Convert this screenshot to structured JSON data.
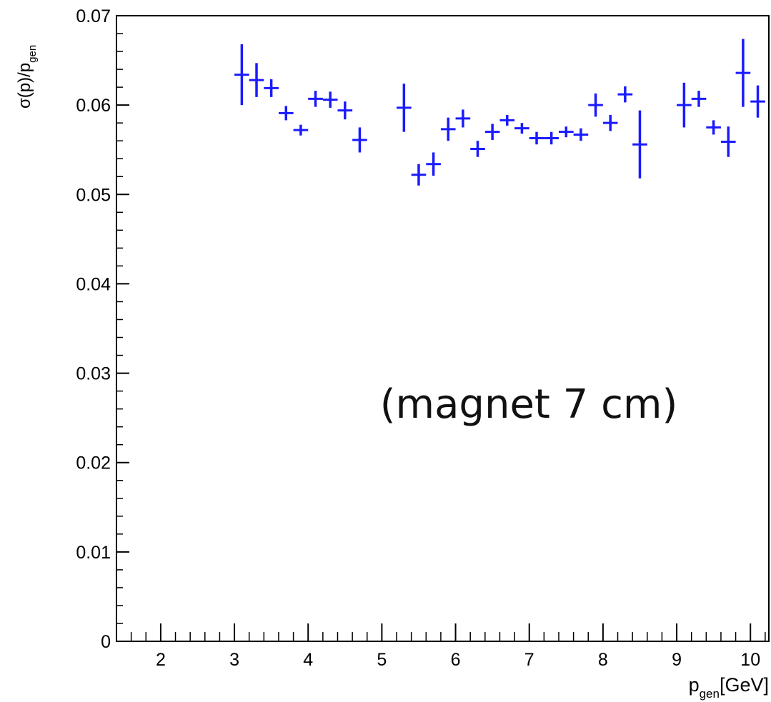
{
  "chart_data": {
    "type": "scatter",
    "title": "",
    "xlabel": {
      "main": "p",
      "sub": "gen",
      "unit": "[GeV]"
    },
    "ylabel": {
      "pre": "σ(p)/p",
      "sub": "gen"
    },
    "xlim": [
      1.4,
      10.25
    ],
    "ylim": [
      0,
      0.07
    ],
    "x_ticks": [
      2,
      3,
      4,
      5,
      6,
      7,
      8,
      9,
      10
    ],
    "y_ticks": [
      0,
      0.01,
      0.02,
      0.03,
      0.04,
      0.05,
      0.06,
      0.07
    ],
    "y_tick_labels": [
      "0",
      "0.01",
      "0.02",
      "0.03",
      "0.04",
      "0.05",
      "0.06",
      "0.07"
    ],
    "x_tick_labels": [
      "2",
      "3",
      "4",
      "5",
      "6",
      "7",
      "8",
      "9",
      "10"
    ],
    "grid": false,
    "marker_color": "#1a1aff",
    "x_half_width": 0.1,
    "series": [
      {
        "x": [
          3.1,
          3.3,
          3.5,
          3.7,
          3.9,
          4.1,
          4.3,
          4.5,
          4.7,
          5.3,
          5.5,
          5.7,
          5.9,
          6.1,
          6.3,
          6.5,
          6.7,
          6.9,
          7.1,
          7.3,
          7.5,
          7.7,
          7.9,
          8.1,
          8.3,
          8.5,
          9.1,
          9.3,
          9.5,
          9.7,
          9.9,
          10.1
        ],
        "y": [
          0.0634,
          0.0628,
          0.0619,
          0.0591,
          0.0572,
          0.0607,
          0.0606,
          0.0594,
          0.0561,
          0.0597,
          0.0522,
          0.0534,
          0.0573,
          0.0585,
          0.0551,
          0.057,
          0.0583,
          0.0574,
          0.0563,
          0.0563,
          0.057,
          0.0567,
          0.06,
          0.058,
          0.0612,
          0.0556,
          0.06,
          0.0607,
          0.0575,
          0.0559,
          0.0636,
          0.0604
        ],
        "y_err": [
          0.0034,
          0.0019,
          0.001,
          0.0008,
          0.0006,
          0.0009,
          0.0009,
          0.001,
          0.0014,
          0.0027,
          0.0012,
          0.0013,
          0.0013,
          0.001,
          0.0009,
          0.0009,
          0.0006,
          0.0006,
          0.0007,
          0.0007,
          0.0006,
          0.0007,
          0.0013,
          0.0009,
          0.0009,
          0.0038,
          0.0025,
          0.0009,
          0.0008,
          0.0017,
          0.0038,
          0.0018
        ]
      }
    ],
    "annotations": [
      {
        "text": "(magnet 7 cm)",
        "x": 7.0,
        "y": 0.0305
      }
    ]
  }
}
